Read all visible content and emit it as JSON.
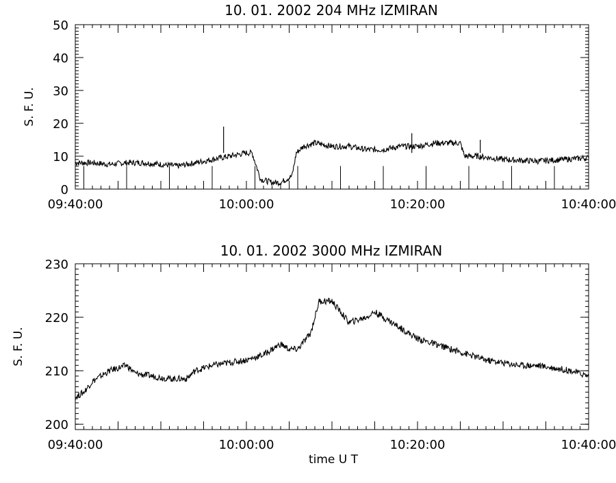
{
  "chart_data": [
    {
      "type": "line",
      "title": "10.  01.  2002    204 MHz    IZMIRAN",
      "ylabel": "S. F. U.",
      "xlabel": "",
      "ylim": [
        0,
        50
      ],
      "xlim": [
        "09:40:00",
        "10:40:00"
      ],
      "yticks": [
        "0",
        "10",
        "20",
        "30",
        "40",
        "50"
      ],
      "xticks": [
        "09:40:00",
        "10:00:00",
        "10:20:00",
        "10:40:00"
      ],
      "grid": false,
      "series": [
        {
          "color": "#000000",
          "x": [
            "09:40:00",
            "09:42:00",
            "09:44:00",
            "09:46:00",
            "09:48:00",
            "09:50:00",
            "09:52:00",
            "09:54:00",
            "09:56:00",
            "09:58:00",
            "10:00:00",
            "10:00:40",
            "10:01:40",
            "10:03:00",
            "10:04:00",
            "10:05:20",
            "10:05:50",
            "10:06:40",
            "10:08:00",
            "10:10:00",
            "10:12:00",
            "10:14:00",
            "10:16:00",
            "10:18:00",
            "10:20:00",
            "10:22:00",
            "10:24:00",
            "10:25:00",
            "10:25:30",
            "10:27:00",
            "10:30:00",
            "10:34:00",
            "10:37:00",
            "10:40:00"
          ],
          "values": [
            8,
            8,
            7.5,
            8,
            8,
            7.5,
            7,
            8,
            9,
            10,
            11,
            11,
            3,
            2,
            2,
            4,
            11,
            13,
            14,
            13,
            13,
            12,
            12,
            13,
            13,
            14,
            14,
            14,
            10,
            10,
            9,
            8.5,
            9,
            9.5
          ]
        }
      ],
      "spikes": [
        {
          "x": "09:57:20",
          "y": 19
        },
        {
          "x": "10:19:20",
          "y": 17
        },
        {
          "x": "10:27:20",
          "y": 15
        }
      ]
    },
    {
      "type": "line",
      "title": "10.  01.  2002    3000 MHz    IZMIRAN",
      "ylabel": "S. F. U.",
      "xlabel": "time   U T",
      "ylim": [
        199,
        230
      ],
      "xlim": [
        "09:40:00",
        "10:40:00"
      ],
      "yticks": [
        "200",
        "210",
        "220",
        "230"
      ],
      "xticks": [
        "09:40:00",
        "10:00:00",
        "10:20:00",
        "10:40:00"
      ],
      "grid": false,
      "series": [
        {
          "color": "#000000",
          "x": [
            "09:40:00",
            "09:41:00",
            "09:42:00",
            "09:44:00",
            "09:46:00",
            "09:47:00",
            "09:49:00",
            "09:51:00",
            "09:53:00",
            "09:54:00",
            "09:56:00",
            "09:58:00",
            "10:00:00",
            "10:02:00",
            "10:03:00",
            "10:04:00",
            "10:05:00",
            "10:06:00",
            "10:07:00",
            "10:07:30",
            "10:08:30",
            "10:10:00",
            "10:12:00",
            "10:14:00",
            "10:15:00",
            "10:16:00",
            "10:18:00",
            "10:20:00",
            "10:22:00",
            "10:24:00",
            "10:26:00",
            "10:28:00",
            "10:30:00",
            "10:32:00",
            "10:34:00",
            "10:36:00",
            "10:38:00",
            "10:40:00"
          ],
          "values": [
            205,
            206,
            208,
            210,
            211,
            209.5,
            209,
            208.5,
            208.5,
            210,
            211,
            211.5,
            212,
            213,
            214,
            215,
            214,
            214,
            216,
            217,
            223,
            223,
            219,
            220,
            221,
            220,
            218,
            216,
            215,
            214,
            213,
            212,
            211.5,
            211,
            211,
            210.5,
            210,
            209
          ]
        }
      ],
      "spikes": []
    }
  ]
}
